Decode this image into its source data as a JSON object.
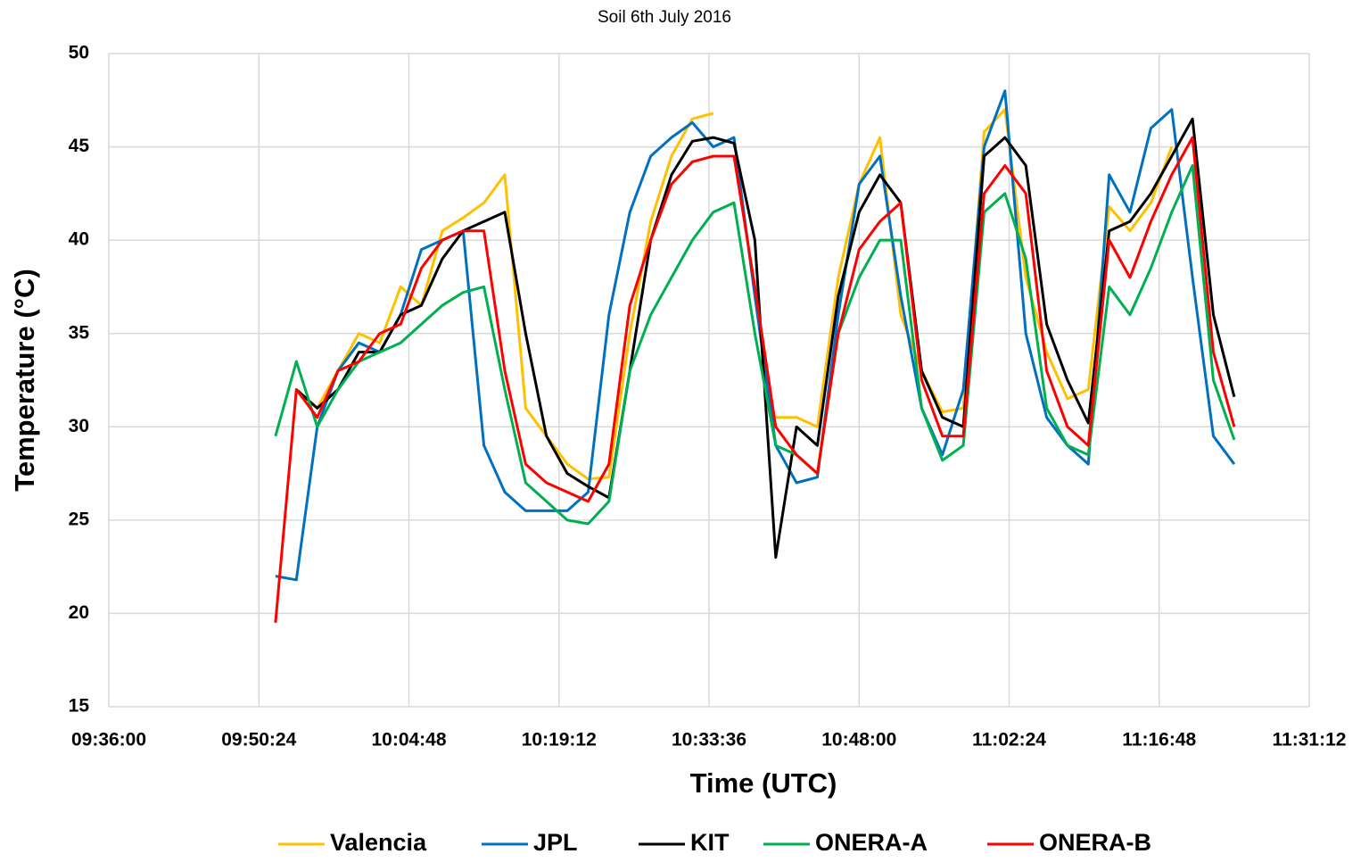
{
  "chart_data": {
    "type": "line",
    "title": "Soil 6th July 2016",
    "xlabel": "Time (UTC)",
    "ylabel": "Temperature (°C)",
    "x": [
      "09:52:00",
      "09:54:00",
      "09:56:00",
      "09:58:00",
      "10:00:00",
      "10:02:00",
      "10:04:00",
      "10:06:00",
      "10:08:00",
      "10:10:00",
      "10:12:00",
      "10:14:00",
      "10:16:00",
      "10:18:00",
      "10:20:00",
      "10:22:00",
      "10:24:00",
      "10:26:00",
      "10:28:00",
      "10:30:00",
      "10:32:00",
      "10:34:00",
      "10:36:00",
      "10:38:00",
      "10:40:00",
      "10:42:00",
      "10:44:00",
      "10:46:00",
      "10:48:00",
      "10:50:00",
      "10:52:00",
      "10:54:00",
      "10:56:00",
      "10:58:00",
      "11:00:00",
      "11:02:00",
      "11:04:00",
      "11:06:00",
      "11:08:00",
      "11:10:00",
      "11:12:00",
      "11:14:00",
      "11:16:00",
      "11:18:00",
      "11:20:00",
      "11:22:00",
      "11:24:00"
    ],
    "series": [
      {
        "name": "Valencia",
        "color": "#ffc000",
        "values": [
          null,
          32,
          31,
          33,
          35,
          34.5,
          37.5,
          36.5,
          40.5,
          41.2,
          42,
          43.5,
          31,
          29.5,
          28,
          27.2,
          27.3,
          35,
          41,
          44.5,
          46.5,
          46.8,
          null,
          null,
          30.5,
          30.5,
          30,
          38,
          43,
          45.5,
          36,
          33,
          30.8,
          31,
          45.8,
          47,
          38,
          34,
          31.5,
          32,
          41.8,
          40.5,
          42,
          45,
          null,
          null,
          null
        ]
      },
      {
        "name": "JPL",
        "color": "#0070c0",
        "values": [
          22,
          21.8,
          30,
          33,
          34.5,
          34,
          36,
          39.5,
          40,
          40.5,
          29,
          26.5,
          25.5,
          25.5,
          25.5,
          26.5,
          36,
          41.5,
          44.5,
          45.5,
          46.3,
          45,
          45.5,
          37,
          29,
          27,
          27.3,
          36,
          43,
          44.5,
          37,
          31,
          28.5,
          32,
          45,
          48,
          35,
          30.5,
          29,
          28,
          43.5,
          41.5,
          46,
          47,
          38,
          29.5,
          28
        ]
      },
      {
        "name": "KIT",
        "color": "#000000",
        "values": [
          null,
          32,
          31,
          32,
          34,
          34,
          36,
          36.5,
          39,
          40.5,
          41,
          41.5,
          35,
          29.5,
          27.5,
          26.8,
          26.2,
          33,
          40,
          43.5,
          45.3,
          45.5,
          45.2,
          40,
          23,
          30,
          29,
          37,
          41.5,
          43.5,
          42,
          33,
          30.5,
          30,
          44.5,
          45.5,
          44,
          35.5,
          32.5,
          30.2,
          40.5,
          41,
          42.5,
          44.5,
          46.5,
          36,
          31.6
        ]
      },
      {
        "name": "ONERA-A",
        "color": "#00b050",
        "values": [
          29.5,
          33.5,
          30,
          32,
          33.5,
          34,
          34.5,
          35.5,
          36.5,
          37.2,
          37.5,
          32,
          27,
          26,
          25,
          24.8,
          26,
          33,
          36,
          38,
          40,
          41.5,
          42,
          35,
          29,
          28.5,
          27.5,
          35,
          38,
          40,
          40,
          31,
          28.2,
          29,
          41.5,
          42.5,
          39,
          31,
          29,
          28.5,
          37.5,
          36,
          38.5,
          41.5,
          44,
          32.5,
          29.3
        ]
      },
      {
        "name": "ONERA-B",
        "color": "#ff0000",
        "values": [
          19.5,
          32,
          30.5,
          33,
          33.5,
          35,
          35.5,
          38.5,
          40,
          40.5,
          40.5,
          33,
          28,
          27,
          26.5,
          26,
          28,
          36.5,
          40,
          43,
          44.2,
          44.5,
          44.5,
          37.5,
          30,
          28.5,
          27.5,
          35,
          39.5,
          41,
          42,
          32.5,
          29.5,
          29.5,
          42.5,
          44,
          42.5,
          33,
          30,
          29,
          40,
          38,
          41,
          43.5,
          45.5,
          34,
          30
        ]
      }
    ],
    "xlim": [
      "09:36:00",
      "11:31:12"
    ],
    "xticks": [
      "09:36:00",
      "09:50:24",
      "10:04:48",
      "10:19:12",
      "10:33:36",
      "10:48:00",
      "11:02:24",
      "11:16:48",
      "11:31:12"
    ],
    "ylim": [
      15,
      50
    ],
    "yticks": [
      15,
      20,
      25,
      30,
      35,
      40,
      45,
      50
    ],
    "grid": true,
    "legend": "bottom"
  }
}
